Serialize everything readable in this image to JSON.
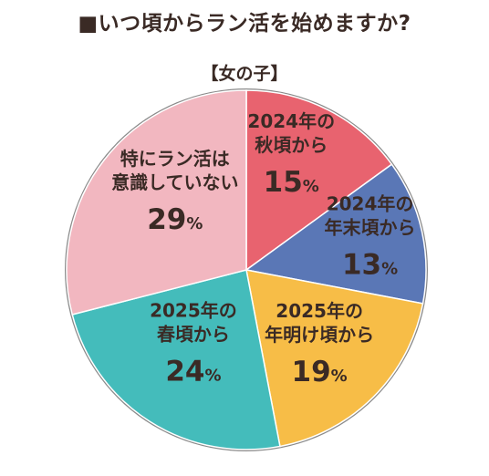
{
  "header": {
    "title": "■いつ頃からラン活を始めますか?",
    "subtitle": "【女の子】"
  },
  "chart_data": {
    "type": "pie",
    "title": "■いつ頃からラン活を始めますか?",
    "subtitle": "【女の子】",
    "unit": "%",
    "slices": [
      {
        "label_lines": [
          "2024年の",
          "秋頃から"
        ],
        "value": 15,
        "color": "#e8636f"
      },
      {
        "label_lines": [
          "2024年の",
          "年末頃から"
        ],
        "value": 13,
        "color": "#5a77b6"
      },
      {
        "label_lines": [
          "2025年の",
          "年明け頃から"
        ],
        "value": 19,
        "color": "#f7bd47"
      },
      {
        "label_lines": [
          "2025年の",
          "春頃から"
        ],
        "value": 24,
        "color": "#44bcbb"
      },
      {
        "label_lines": [
          "特にラン活は",
          "意識していない"
        ],
        "value": 29,
        "color": "#f2b7c0"
      }
    ]
  }
}
